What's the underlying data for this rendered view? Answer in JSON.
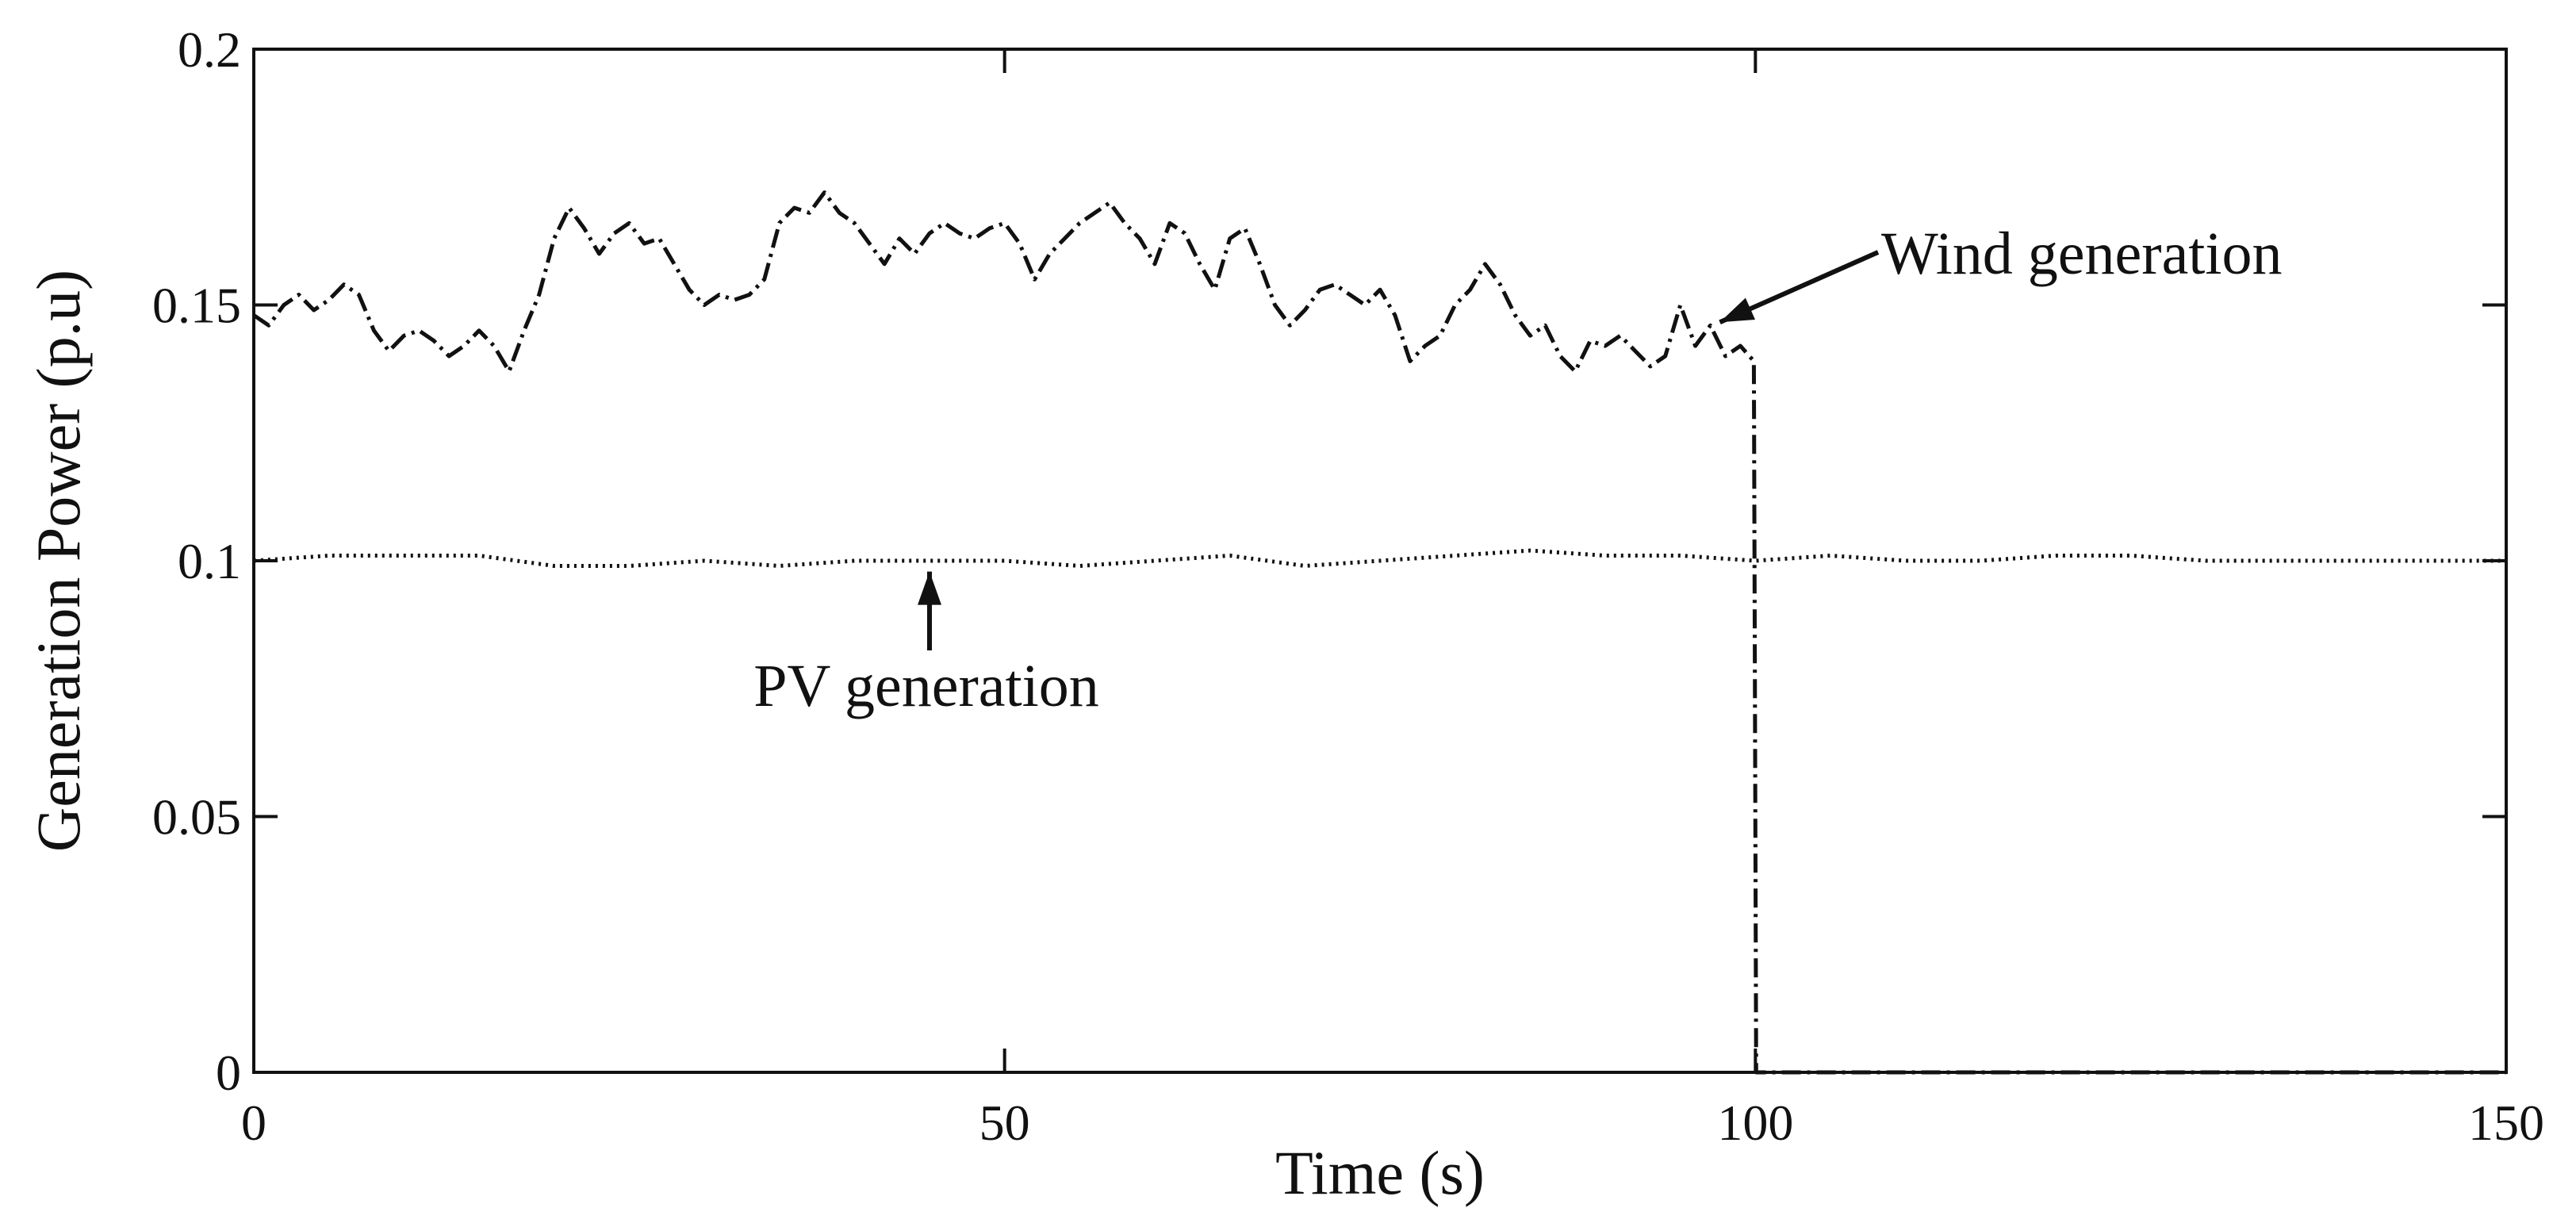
{
  "chart_data": {
    "type": "line",
    "title": "",
    "xlabel": "Time (s)",
    "ylabel": "Generation Power (p.u)",
    "xlim": [
      0,
      150
    ],
    "ylim": [
      0,
      0.2
    ],
    "grid": false,
    "xticks": [
      0,
      50,
      100,
      150
    ],
    "yticks": [
      0,
      0.05,
      0.1,
      0.15,
      0.2
    ],
    "xtick_labels": [
      "0",
      "50",
      "100",
      "150"
    ],
    "ytick_labels": [
      "0",
      "0.05",
      "0.1",
      "0.15",
      "0.2"
    ],
    "series": [
      {
        "name": "Wind generation",
        "style": "dash-dot",
        "color": "#111111",
        "x": [
          0,
          1,
          2,
          3,
          4,
          5,
          6,
          7,
          8,
          9,
          10,
          11,
          12,
          13,
          14,
          15,
          16,
          17,
          18,
          19,
          20,
          21,
          22,
          23,
          24,
          25,
          26,
          27,
          28,
          29,
          30,
          31,
          32,
          33,
          34,
          35,
          36,
          37,
          38,
          39,
          40,
          41,
          42,
          43,
          44,
          45,
          46,
          47,
          48,
          49,
          50,
          51,
          52,
          53,
          54,
          55,
          56,
          57,
          58,
          59,
          60,
          61,
          62,
          63,
          64,
          65,
          66,
          67,
          68,
          69,
          70,
          71,
          72,
          73,
          74,
          75,
          76,
          77,
          78,
          79,
          80,
          81,
          82,
          83,
          84,
          85,
          86,
          87,
          88,
          89,
          90,
          91,
          92,
          93,
          94,
          95,
          96,
          97,
          98,
          99,
          99.9,
          100.05,
          101,
          110,
          120,
          130,
          140,
          150
        ],
        "values": [
          0.148,
          0.146,
          0.15,
          0.152,
          0.149,
          0.151,
          0.154,
          0.152,
          0.145,
          0.141,
          0.144,
          0.145,
          0.143,
          0.14,
          0.142,
          0.145,
          0.142,
          0.137,
          0.145,
          0.152,
          0.163,
          0.169,
          0.165,
          0.16,
          0.164,
          0.166,
          0.162,
          0.163,
          0.158,
          0.153,
          0.15,
          0.152,
          0.151,
          0.152,
          0.155,
          0.166,
          0.169,
          0.168,
          0.172,
          0.168,
          0.166,
          0.162,
          0.158,
          0.163,
          0.16,
          0.164,
          0.166,
          0.164,
          0.163,
          0.165,
          0.166,
          0.162,
          0.155,
          0.16,
          0.163,
          0.166,
          0.168,
          0.17,
          0.166,
          0.163,
          0.158,
          0.166,
          0.164,
          0.158,
          0.153,
          0.163,
          0.165,
          0.158,
          0.15,
          0.146,
          0.149,
          0.153,
          0.154,
          0.152,
          0.15,
          0.153,
          0.148,
          0.139,
          0.142,
          0.144,
          0.15,
          0.153,
          0.158,
          0.154,
          0.148,
          0.144,
          0.146,
          0.14,
          0.137,
          0.143,
          0.142,
          0.144,
          0.141,
          0.138,
          0.14,
          0.15,
          0.142,
          0.146,
          0.14,
          0.142,
          0.139,
          0.0,
          0.0,
          0.0,
          0.0,
          0.0,
          0.0,
          0.0
        ]
      },
      {
        "name": "PV generation",
        "style": "dotted",
        "color": "#111111",
        "x": [
          0,
          5,
          10,
          15,
          20,
          25,
          30,
          35,
          40,
          45,
          50,
          55,
          60,
          65,
          70,
          75,
          80,
          85,
          90,
          95,
          100,
          105,
          110,
          115,
          120,
          125,
          130,
          135,
          140,
          145,
          150
        ],
        "values": [
          0.1,
          0.101,
          0.101,
          0.101,
          0.099,
          0.099,
          0.1,
          0.099,
          0.1,
          0.1,
          0.1,
          0.099,
          0.1,
          0.101,
          0.099,
          0.1,
          0.101,
          0.102,
          0.101,
          0.101,
          0.1,
          0.101,
          0.1,
          0.1,
          0.101,
          0.101,
          0.1,
          0.1,
          0.1,
          0.1,
          0.1
        ]
      }
    ],
    "annotations": [
      {
        "text": "Wind generation",
        "target_x": 97,
        "target_y": 0.146
      },
      {
        "text": "PV generation",
        "target_x": 45,
        "target_y": 0.0985
      }
    ]
  }
}
